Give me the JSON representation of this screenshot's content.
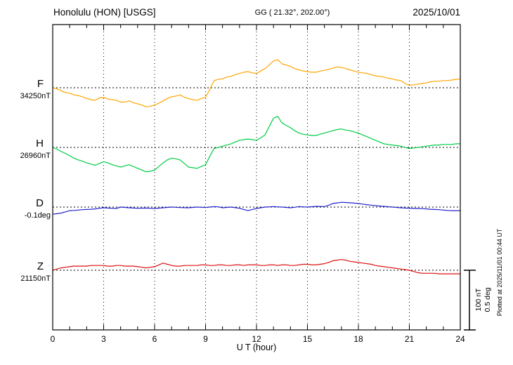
{
  "header": {
    "station": "Honolulu (HON)  [USGS]",
    "geo_coords": "GG ( 21.32°, 202.00°)",
    "date": "2025/10/01"
  },
  "chart_data": {
    "type": "line",
    "title": "Honolulu (HON) [USGS] magnetogram 2025/10/01",
    "xlabel": "U T (hour)",
    "xlim": [
      0,
      24
    ],
    "x_ticks": [
      0,
      3,
      6,
      9,
      12,
      15,
      18,
      21,
      24
    ],
    "x_minor_step_hours": 1,
    "x_sample_step_hours": 0.25,
    "grid": "vertical-dotted-every-3h",
    "footnote": "Plotted at 2025/11/01 00:44 UT",
    "scale_bar": {
      "nT_label": "100 nT",
      "deg_label": "0.5 deg",
      "nT_span": 100,
      "deg_span": 0.5
    },
    "series": [
      {
        "id": "F",
        "label": "F",
        "baseline_label": "34250nT",
        "baseline_value": 34250,
        "unit": "nT",
        "color": "#FFA500",
        "values": [
          0,
          -2,
          -5,
          -8,
          -9,
          -12,
          -13,
          -15,
          -18,
          -20,
          -21,
          -17,
          -16,
          -19,
          -20,
          -21,
          -24,
          -24,
          -22,
          -25,
          -27,
          -29,
          -32,
          -31,
          -29,
          -26,
          -22,
          -18,
          -15,
          -14,
          -12,
          -16,
          -18,
          -20,
          -21,
          -18,
          -16,
          -3,
          12,
          14,
          15,
          18,
          19,
          22,
          24,
          26,
          27,
          25,
          24,
          28,
          32,
          38,
          45,
          47,
          40,
          38,
          36,
          32,
          30,
          28,
          27,
          26,
          26,
          28,
          29,
          31,
          33,
          35,
          34,
          32,
          30,
          28,
          26,
          25,
          24,
          22,
          20,
          19,
          18,
          16,
          15,
          13,
          12,
          7,
          4,
          5,
          6,
          7,
          8,
          10,
          11,
          11,
          12,
          12,
          13,
          14,
          15
        ]
      },
      {
        "id": "H",
        "label": "H",
        "baseline_label": "26960nT",
        "baseline_value": 26960,
        "unit": "nT",
        "color": "#00CC44",
        "values": [
          0,
          -3,
          -7,
          -10,
          -14,
          -18,
          -21,
          -23,
          -26,
          -28,
          -30,
          -27,
          -24,
          -26,
          -29,
          -31,
          -33,
          -31,
          -29,
          -32,
          -35,
          -38,
          -41,
          -40,
          -38,
          -32,
          -26,
          -21,
          -18,
          -19,
          -21,
          -27,
          -33,
          -34,
          -35,
          -32,
          -29,
          -15,
          -2,
          0,
          2,
          4,
          6,
          9,
          12,
          13,
          14,
          13,
          12,
          16,
          21,
          35,
          49,
          52,
          41,
          37,
          33,
          28,
          24,
          22,
          21,
          20,
          20,
          22,
          24,
          26,
          28,
          30,
          31,
          29,
          28,
          26,
          24,
          21,
          18,
          15,
          12,
          9,
          6,
          5,
          4,
          3,
          2,
          0,
          -2,
          -1,
          0,
          1,
          2,
          3,
          4,
          4,
          5,
          5,
          5,
          6,
          6
        ]
      },
      {
        "id": "D",
        "label": "D",
        "baseline_label": "-0.1deg",
        "baseline_value": -0.1,
        "unit": "deg",
        "color": "#2222CC",
        "values": [
          -0.06,
          -0.055,
          -0.05,
          -0.04,
          -0.03,
          -0.028,
          -0.025,
          -0.022,
          -0.02,
          -0.018,
          -0.015,
          -0.01,
          -0.006,
          -0.008,
          -0.01,
          -0.012,
          0,
          -0.003,
          -0.006,
          -0.008,
          -0.01,
          -0.009,
          -0.008,
          -0.01,
          -0.012,
          -0.009,
          -0.006,
          -0.003,
          0,
          -0.002,
          -0.004,
          -0.005,
          -0.006,
          -0.003,
          0,
          -0.002,
          -0.004,
          0,
          0.004,
          0.002,
          -0.006,
          -0.003,
          0,
          -0.005,
          -0.01,
          -0.02,
          -0.03,
          -0.02,
          -0.012,
          -0.006,
          0,
          0.002,
          0.004,
          0.002,
          0,
          -0.003,
          -0.006,
          -0.002,
          0.004,
          0.002,
          0,
          0.003,
          0.006,
          0.005,
          0.004,
          0.015,
          0.03,
          0.035,
          0.04,
          0.038,
          0.036,
          0.033,
          0.03,
          0.025,
          0.02,
          0.016,
          0.012,
          0.009,
          0.006,
          0.003,
          0,
          -0.003,
          -0.006,
          -0.008,
          -0.01,
          -0.011,
          -0.012,
          -0.013,
          -0.015,
          -0.018,
          -0.02,
          -0.022,
          -0.025,
          -0.028,
          -0.03,
          -0.03,
          -0.03
        ]
      },
      {
        "id": "Z",
        "label": "Z",
        "baseline_label": "21150nT",
        "baseline_value": 21150,
        "unit": "nT",
        "color": "#DD1111",
        "values": [
          0,
          2,
          4,
          5,
          6,
          7,
          7,
          7,
          7,
          8,
          8,
          8,
          8,
          7,
          7,
          8,
          8,
          7,
          7,
          7,
          6,
          5,
          4,
          5,
          6,
          9,
          12,
          10,
          8,
          7,
          7,
          8,
          8,
          8,
          8,
          9,
          9,
          8,
          8,
          9,
          9,
          8,
          8,
          9,
          9,
          8,
          9,
          9,
          9,
          8,
          8,
          9,
          9,
          8,
          9,
          9,
          8,
          8,
          9,
          10,
          10,
          9,
          9,
          10,
          11,
          13,
          16,
          17,
          18,
          17,
          15,
          14,
          13,
          12,
          11,
          10,
          8,
          7,
          6,
          5,
          4,
          3,
          2,
          1,
          0,
          -2,
          -4,
          -5,
          -5,
          -5,
          -5,
          -6,
          -6,
          -6,
          -6,
          -6,
          -6
        ]
      }
    ]
  }
}
